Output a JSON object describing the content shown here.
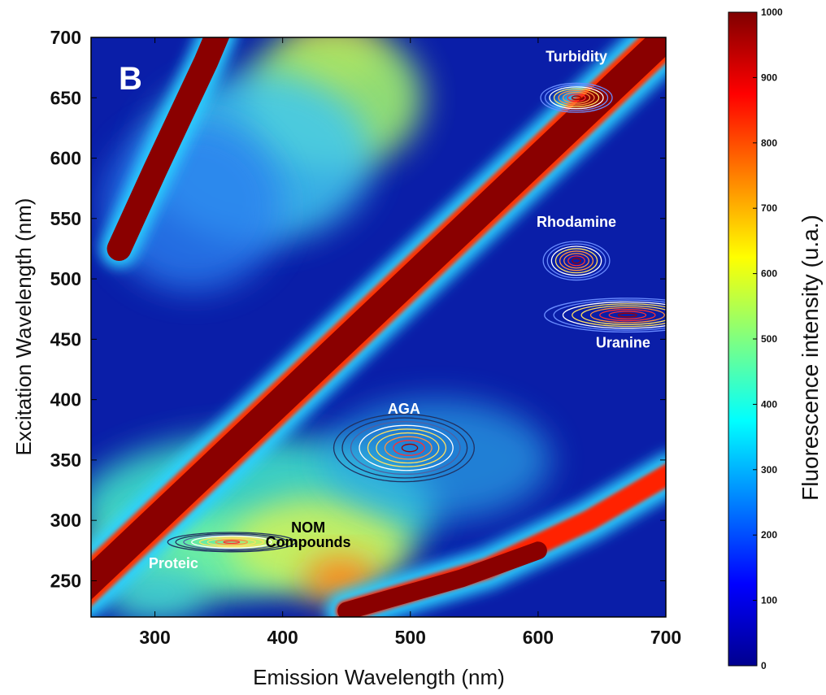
{
  "chart_data": {
    "type": "heatmap",
    "panel_label": "B",
    "xlabel": "Emission Wavelength (nm)",
    "ylabel": "Excitation Wavelength (nm)",
    "xlim": [
      250,
      700
    ],
    "ylim": [
      220,
      700
    ],
    "xticks": [
      "300",
      "400",
      "500",
      "600",
      "700"
    ],
    "yticks": [
      "250",
      "300",
      "350",
      "400",
      "450",
      "500",
      "550",
      "600",
      "650",
      "700"
    ],
    "colorbar": {
      "label": "Fluorescence intensity (u.a.)",
      "range": [
        0,
        1000
      ],
      "ticks": [
        "0",
        "100",
        "200",
        "300",
        "400",
        "500",
        "600",
        "700",
        "800",
        "900",
        "1000"
      ],
      "colormap": [
        "#00008f",
        "#0000ff",
        "#0080ff",
        "#00ffff",
        "#80ff80",
        "#ffff00",
        "#ff8000",
        "#ff0000",
        "#800000"
      ]
    },
    "scatter_bands": [
      {
        "name": "first-order Rayleigh",
        "ex_eq_em_offset": 0
      },
      {
        "name": "second-order",
        "em_eq_2ex": true
      },
      {
        "name": "half-order",
        "em_eq_half_ex": true
      }
    ],
    "annotations": [
      {
        "text": "Turbidity",
        "em": 630,
        "ex": 650,
        "color": "#ffffff"
      },
      {
        "text": "Rhodamine",
        "em": 630,
        "ex": 515,
        "color": "#ffffff"
      },
      {
        "text": "Uranine",
        "em": 650,
        "ex": 470,
        "color": "#ffffff"
      },
      {
        "text": "AGA",
        "em": 495,
        "ex": 360,
        "color": "#ffffff"
      },
      {
        "text": "NOM",
        "em": 420,
        "ex": 290,
        "color": "#000000"
      },
      {
        "text": "Compounds",
        "em": 420,
        "ex": 278,
        "color": "#000000"
      },
      {
        "text": "Proteic",
        "em": 340,
        "ex": 282,
        "color": "#ffffff"
      }
    ],
    "peaks": [
      {
        "name": "Turbidity",
        "em": 630,
        "ex": 650,
        "intensity": 950
      },
      {
        "name": "Rhodamine",
        "em": 630,
        "ex": 515,
        "intensity": 980
      },
      {
        "name": "Uranine",
        "em": 670,
        "ex": 470,
        "intensity": 1000
      },
      {
        "name": "AGA",
        "em": 495,
        "ex": 360,
        "intensity": 900
      },
      {
        "name": "Proteic",
        "em": 360,
        "ex": 282,
        "intensity": 900
      }
    ]
  }
}
